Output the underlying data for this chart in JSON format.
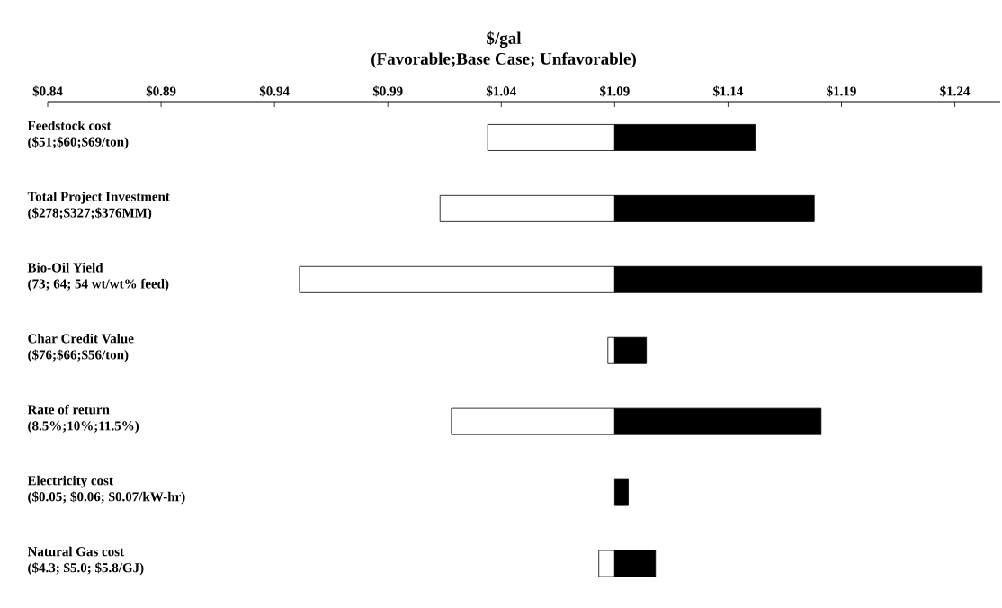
{
  "chart_data": {
    "type": "bar",
    "orientation": "horizontal",
    "title": "$/gal",
    "subtitle": "(Favorable;Base Case; Unfavorable)",
    "categories": [
      "Feedstock cost\n($51;$60;$69/ton)",
      "Total Project Investment\n($278;$327;$376MM)",
      "Bio-Oil Yield\n(73; 64; 54 wt/wt% feed)",
      "Char Credit Value\n($76;$66;$56/ton)",
      "Rate of return\n(8.5%;10%;11.5%)",
      "Electricity cost\n($0.05; $0.06; $0.07/kW-hr)",
      "Natural Gas cost\n($4.3; $5.0; $5.8/GJ)"
    ],
    "series": [
      {
        "color": "#ffffff",
        "base": [
          1.034,
          1.013,
          0.951,
          1.087,
          1.018,
          null,
          1.083
        ],
        "values": [
          0.056,
          0.077,
          0.139,
          0.003,
          0.072,
          null,
          0.007
        ]
      },
      {
        "color": "#000000",
        "base": [
          1.09,
          1.09,
          1.09,
          1.09,
          1.09,
          1.09,
          1.09
        ],
        "values": [
          0.062,
          0.088,
          0.162,
          0.014,
          0.091,
          0.006,
          0.018
        ]
      }
    ],
    "xlim": [
      0.84,
      1.26
    ],
    "xticks": [
      {
        "value": 0.84,
        "label": "$0.84"
      },
      {
        "value": 0.89,
        "label": "$0.89"
      },
      {
        "value": 0.94,
        "label": "$0.94"
      },
      {
        "value": 0.99,
        "label": "$0.99"
      },
      {
        "value": 1.04,
        "label": "$1.04"
      },
      {
        "value": 1.09,
        "label": "$1.09"
      },
      {
        "value": 1.14,
        "label": "$1.14"
      },
      {
        "value": 1.19,
        "label": "$1.19"
      },
      {
        "value": 1.24,
        "label": "$1.24"
      }
    ],
    "grid": false
  }
}
